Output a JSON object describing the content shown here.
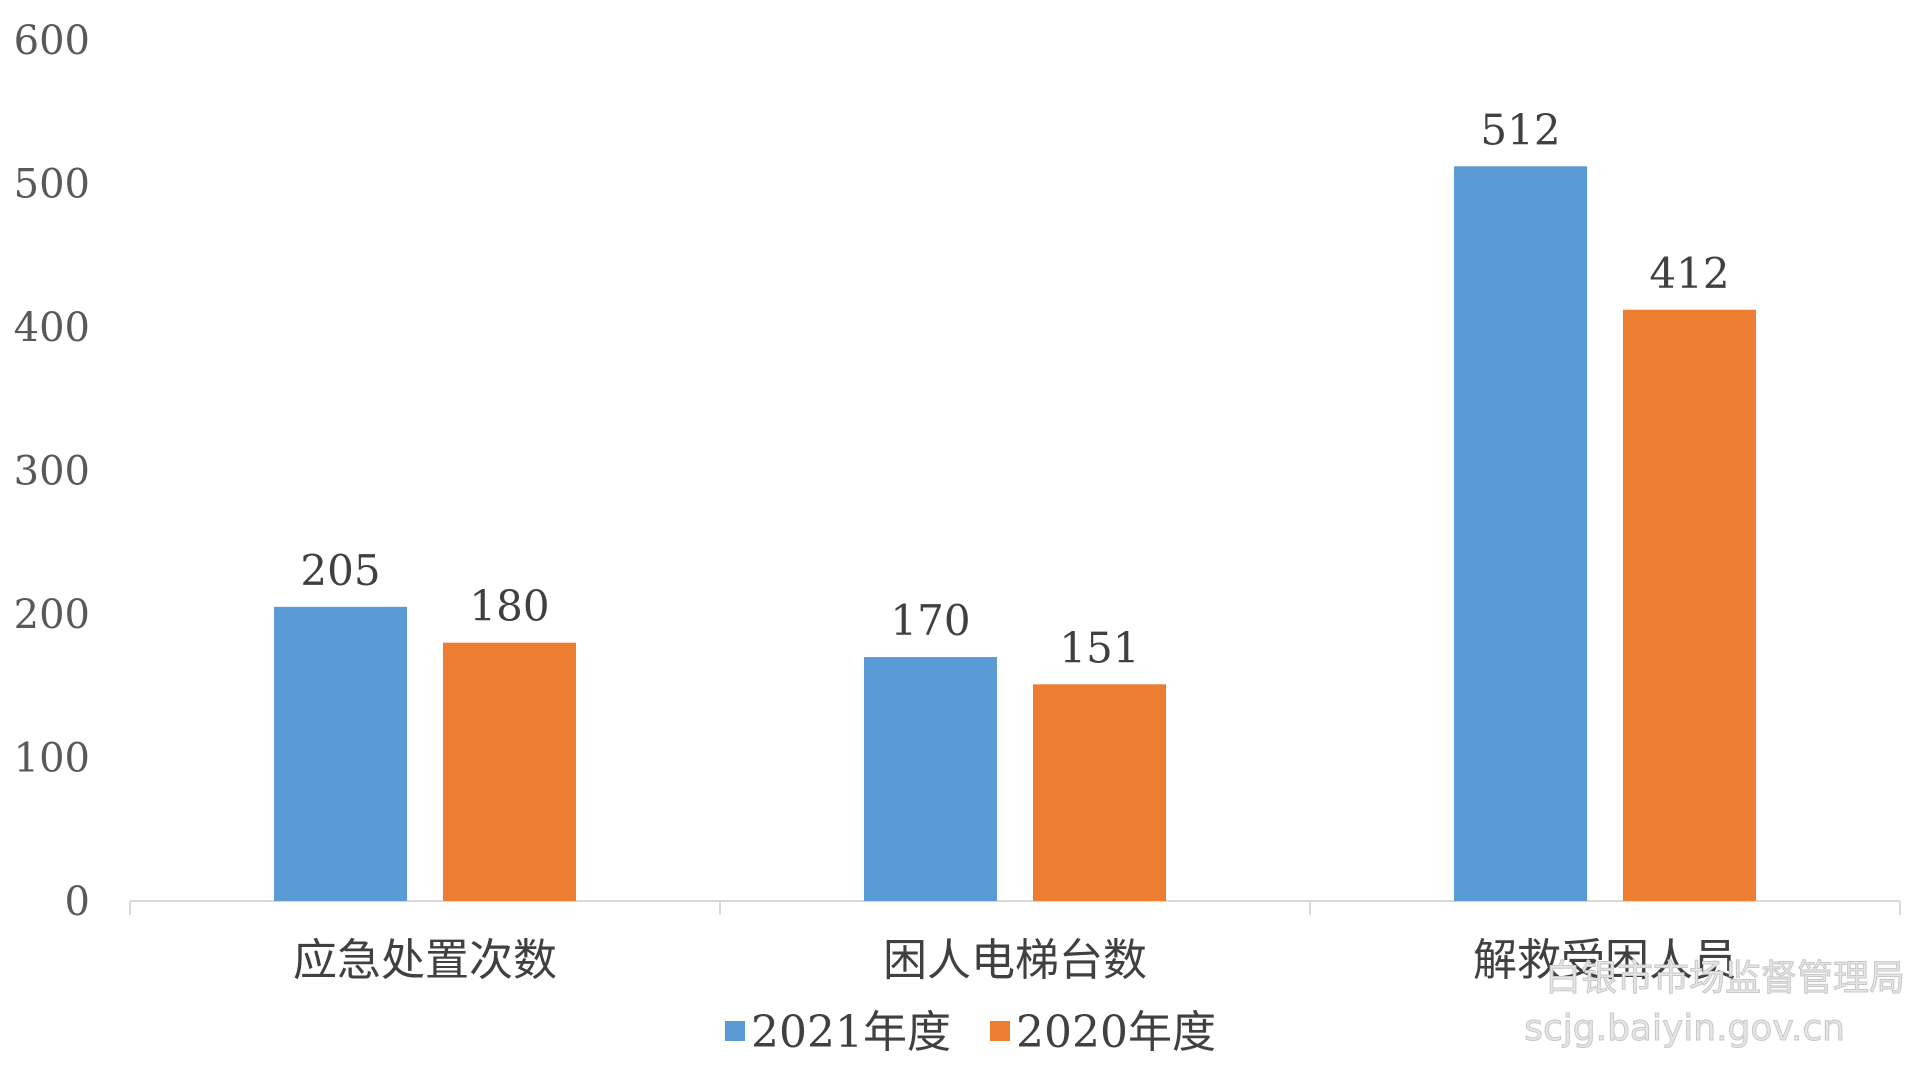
{
  "chart_data": {
    "type": "bar",
    "categories": [
      "应急处置次数",
      "困人电梯台数",
      "解救受困人员"
    ],
    "series": [
      {
        "name": "2021年度",
        "values": [
          205,
          170,
          512
        ],
        "color": "#5B9BD5"
      },
      {
        "name": "2020年度",
        "values": [
          180,
          151,
          412
        ],
        "color": "#ED7D31"
      }
    ],
    "ylim": [
      0,
      600
    ],
    "yticks": [
      0,
      100,
      200,
      300,
      400,
      500,
      600
    ],
    "grid": false,
    "legend_position": "bottom-center"
  },
  "watermark": {
    "line1": "白银市市场监督管理局",
    "line2": "scjg.baiyin.gov.cn"
  }
}
